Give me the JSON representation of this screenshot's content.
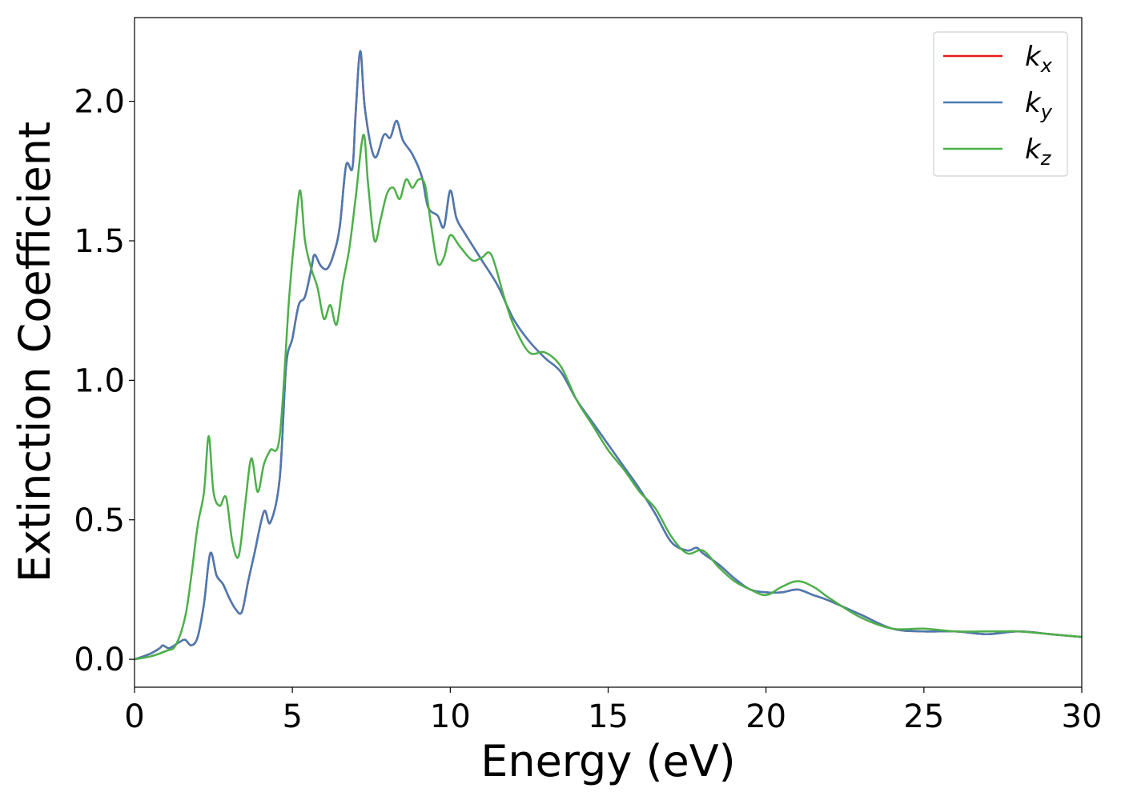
{
  "chart_data": {
    "type": "line",
    "title": "",
    "xlabel": "Energy (eV)",
    "ylabel": "Extinction Coefficient",
    "xlim": [
      0,
      30
    ],
    "ylim": [
      -0.1,
      2.3
    ],
    "xticks": [
      0,
      5,
      10,
      15,
      20,
      25,
      30
    ],
    "xtick_labels": [
      "0",
      "5",
      "10",
      "15",
      "20",
      "25",
      "30"
    ],
    "yticks": [
      0.0,
      0.5,
      1.0,
      1.5,
      2.0
    ],
    "ytick_labels": [
      "0.0",
      "0.5",
      "1.0",
      "1.5",
      "2.0"
    ],
    "grid": false,
    "legend_position": "top-right",
    "series": [
      {
        "name": "k",
        "subscript": "x",
        "color": "#e41a1c",
        "x": [
          0,
          0.5,
          0.8,
          0.9,
          1.1,
          1.4,
          1.6,
          1.8,
          2.0,
          2.2,
          2.4,
          2.6,
          2.8,
          3.0,
          3.2,
          3.4,
          3.6,
          3.8,
          4.1,
          4.3,
          4.6,
          4.8,
          5.0,
          5.2,
          5.4,
          5.6,
          5.7,
          5.9,
          6.1,
          6.3,
          6.5,
          6.7,
          6.9,
          7.0,
          7.15,
          7.3,
          7.6,
          7.9,
          8.1,
          8.3,
          8.5,
          8.8,
          9.1,
          9.3,
          9.6,
          9.8,
          10.0,
          10.2,
          10.5,
          11.0,
          11.5,
          12.0,
          12.5,
          13.0,
          13.5,
          14.0,
          14.5,
          15.0,
          15.5,
          16.0,
          16.5,
          17.0,
          17.5,
          17.8,
          18.0,
          18.5,
          19.0,
          19.5,
          20.0,
          20.5,
          21.0,
          21.5,
          22.0,
          23.0,
          24.0,
          25.0,
          26.0,
          27.0,
          28.0,
          29.0,
          30.0
        ],
        "values": [
          0.0,
          0.02,
          0.04,
          0.05,
          0.04,
          0.06,
          0.07,
          0.05,
          0.08,
          0.2,
          0.38,
          0.3,
          0.27,
          0.22,
          0.18,
          0.17,
          0.28,
          0.38,
          0.53,
          0.49,
          0.65,
          1.05,
          1.15,
          1.27,
          1.3,
          1.4,
          1.45,
          1.41,
          1.4,
          1.45,
          1.55,
          1.77,
          1.76,
          1.95,
          2.18,
          1.97,
          1.8,
          1.88,
          1.87,
          1.93,
          1.86,
          1.81,
          1.73,
          1.62,
          1.59,
          1.55,
          1.68,
          1.58,
          1.52,
          1.43,
          1.34,
          1.22,
          1.14,
          1.08,
          1.03,
          0.93,
          0.85,
          0.77,
          0.69,
          0.61,
          0.52,
          0.42,
          0.39,
          0.4,
          0.38,
          0.34,
          0.29,
          0.25,
          0.24,
          0.24,
          0.25,
          0.23,
          0.21,
          0.16,
          0.11,
          0.1,
          0.1,
          0.09,
          0.1,
          0.09,
          0.08
        ]
      },
      {
        "name": "k",
        "subscript": "y",
        "color": "#4a7ab0",
        "x": [
          0,
          0.5,
          0.8,
          0.9,
          1.1,
          1.4,
          1.6,
          1.8,
          2.0,
          2.2,
          2.4,
          2.6,
          2.8,
          3.0,
          3.2,
          3.4,
          3.6,
          3.8,
          4.1,
          4.3,
          4.6,
          4.8,
          5.0,
          5.2,
          5.4,
          5.6,
          5.7,
          5.9,
          6.1,
          6.3,
          6.5,
          6.7,
          6.9,
          7.0,
          7.15,
          7.3,
          7.6,
          7.9,
          8.1,
          8.3,
          8.5,
          8.8,
          9.1,
          9.3,
          9.6,
          9.8,
          10.0,
          10.2,
          10.5,
          11.0,
          11.5,
          12.0,
          12.5,
          13.0,
          13.5,
          14.0,
          14.5,
          15.0,
          15.5,
          16.0,
          16.5,
          17.0,
          17.5,
          17.8,
          18.0,
          18.5,
          19.0,
          19.5,
          20.0,
          20.5,
          21.0,
          21.5,
          22.0,
          23.0,
          24.0,
          25.0,
          26.0,
          27.0,
          28.0,
          29.0,
          30.0
        ],
        "values": [
          0.0,
          0.02,
          0.04,
          0.05,
          0.04,
          0.06,
          0.07,
          0.05,
          0.08,
          0.2,
          0.38,
          0.3,
          0.27,
          0.22,
          0.18,
          0.17,
          0.28,
          0.38,
          0.53,
          0.49,
          0.65,
          1.05,
          1.15,
          1.27,
          1.3,
          1.4,
          1.45,
          1.41,
          1.4,
          1.45,
          1.55,
          1.77,
          1.76,
          1.95,
          2.18,
          1.97,
          1.8,
          1.88,
          1.87,
          1.93,
          1.86,
          1.81,
          1.73,
          1.62,
          1.59,
          1.55,
          1.68,
          1.58,
          1.52,
          1.43,
          1.34,
          1.22,
          1.14,
          1.08,
          1.03,
          0.93,
          0.85,
          0.77,
          0.69,
          0.61,
          0.52,
          0.42,
          0.39,
          0.4,
          0.38,
          0.34,
          0.29,
          0.25,
          0.24,
          0.24,
          0.25,
          0.23,
          0.21,
          0.16,
          0.11,
          0.1,
          0.1,
          0.09,
          0.1,
          0.09,
          0.08
        ]
      },
      {
        "name": "k",
        "subscript": "z",
        "color": "#4daf4a",
        "x": [
          0,
          0.5,
          1.0,
          1.3,
          1.6,
          1.8,
          2.0,
          2.2,
          2.35,
          2.5,
          2.7,
          2.9,
          3.1,
          3.3,
          3.5,
          3.7,
          3.9,
          4.1,
          4.3,
          4.6,
          4.9,
          5.1,
          5.25,
          5.4,
          5.6,
          5.8,
          6.0,
          6.2,
          6.4,
          6.6,
          6.8,
          7.0,
          7.25,
          7.4,
          7.6,
          7.8,
          8.0,
          8.2,
          8.4,
          8.6,
          8.8,
          9.0,
          9.2,
          9.4,
          9.6,
          9.8,
          10.0,
          10.3,
          10.7,
          11.0,
          11.3,
          11.7,
          12.0,
          12.5,
          13.0,
          13.5,
          14.0,
          14.5,
          15.0,
          15.5,
          16.0,
          16.5,
          17.0,
          17.5,
          18.0,
          18.5,
          19.0,
          19.5,
          20.0,
          20.5,
          21.0,
          21.5,
          22.0,
          23.0,
          24.0,
          25.0,
          26.0,
          27.0,
          27.5,
          28.0,
          29.0,
          30.0
        ],
        "values": [
          0.0,
          0.01,
          0.03,
          0.05,
          0.15,
          0.3,
          0.48,
          0.6,
          0.8,
          0.6,
          0.55,
          0.58,
          0.42,
          0.37,
          0.55,
          0.72,
          0.6,
          0.7,
          0.75,
          0.8,
          1.3,
          1.55,
          1.68,
          1.5,
          1.4,
          1.33,
          1.22,
          1.27,
          1.2,
          1.35,
          1.47,
          1.65,
          1.88,
          1.7,
          1.5,
          1.58,
          1.67,
          1.69,
          1.65,
          1.72,
          1.69,
          1.72,
          1.7,
          1.55,
          1.42,
          1.44,
          1.52,
          1.48,
          1.43,
          1.44,
          1.45,
          1.3,
          1.2,
          1.1,
          1.1,
          1.05,
          0.93,
          0.84,
          0.75,
          0.68,
          0.6,
          0.54,
          0.44,
          0.38,
          0.39,
          0.33,
          0.28,
          0.25,
          0.23,
          0.26,
          0.28,
          0.26,
          0.22,
          0.15,
          0.11,
          0.11,
          0.1,
          0.1,
          0.1,
          0.1,
          0.09,
          0.08
        ]
      }
    ]
  }
}
